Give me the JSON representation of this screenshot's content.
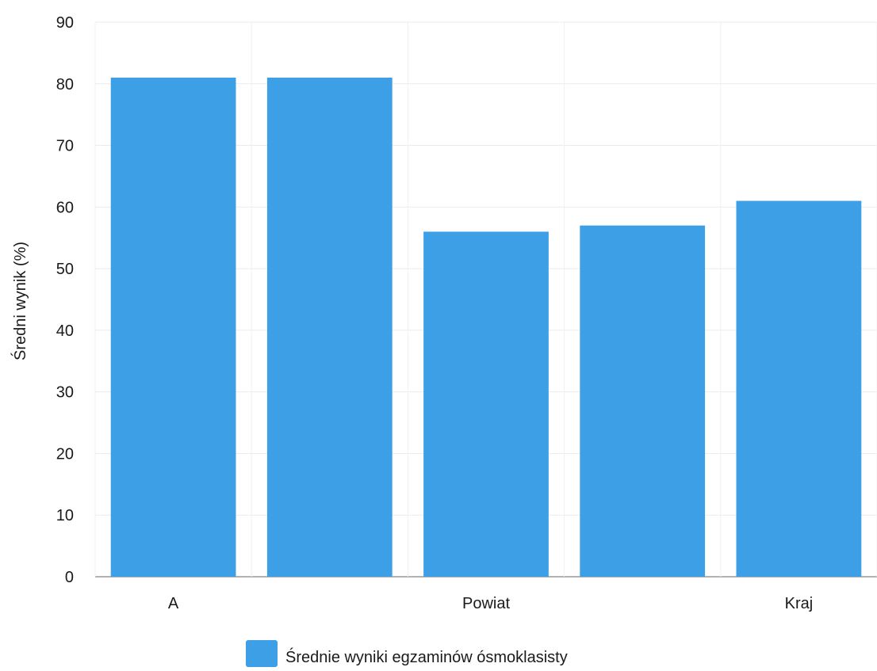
{
  "chart_data": {
    "type": "bar",
    "ylabel": "Średni wynik (%)",
    "xlabel": "",
    "ylim": [
      0,
      90
    ],
    "yticks": [
      0,
      10,
      20,
      30,
      40,
      50,
      60,
      70,
      80,
      90
    ],
    "categories": [
      "A",
      "",
      "Powiat",
      "",
      "Kraj"
    ],
    "series": [
      {
        "name": "Średnie wyniki egzaminów ósmoklasisty",
        "color": "#3da0e6",
        "values": [
          81,
          81,
          56,
          57,
          61
        ]
      }
    ],
    "grid": true,
    "legend_position": "bottom"
  }
}
